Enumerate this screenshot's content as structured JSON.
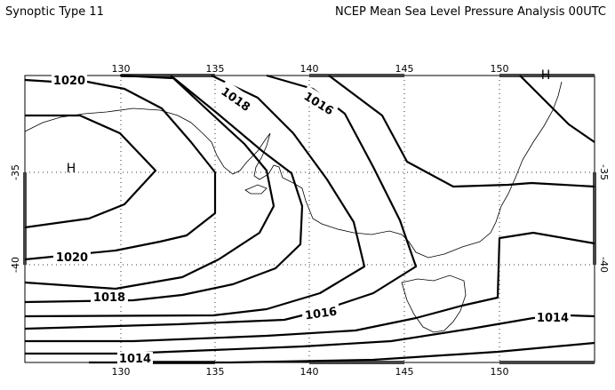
{
  "header": {
    "left_title": "Synoptic Type 11",
    "right_title": "NCEP Mean Sea Level Pressure Analysis 00UTC"
  },
  "axes": {
    "lon_ticks": [
      "130",
      "135",
      "140",
      "145",
      "150"
    ],
    "lat_ticks": [
      "-35",
      "-40"
    ]
  },
  "highs": [
    {
      "label": "H"
    },
    {
      "label": "H"
    }
  ],
  "contour_labels": [
    "1020",
    "1018",
    "1016",
    "1020",
    "1018",
    "1016",
    "1014",
    "1014"
  ],
  "colors": {
    "ink": "#000000",
    "grid": "#333333",
    "background": "#ffffff"
  }
}
